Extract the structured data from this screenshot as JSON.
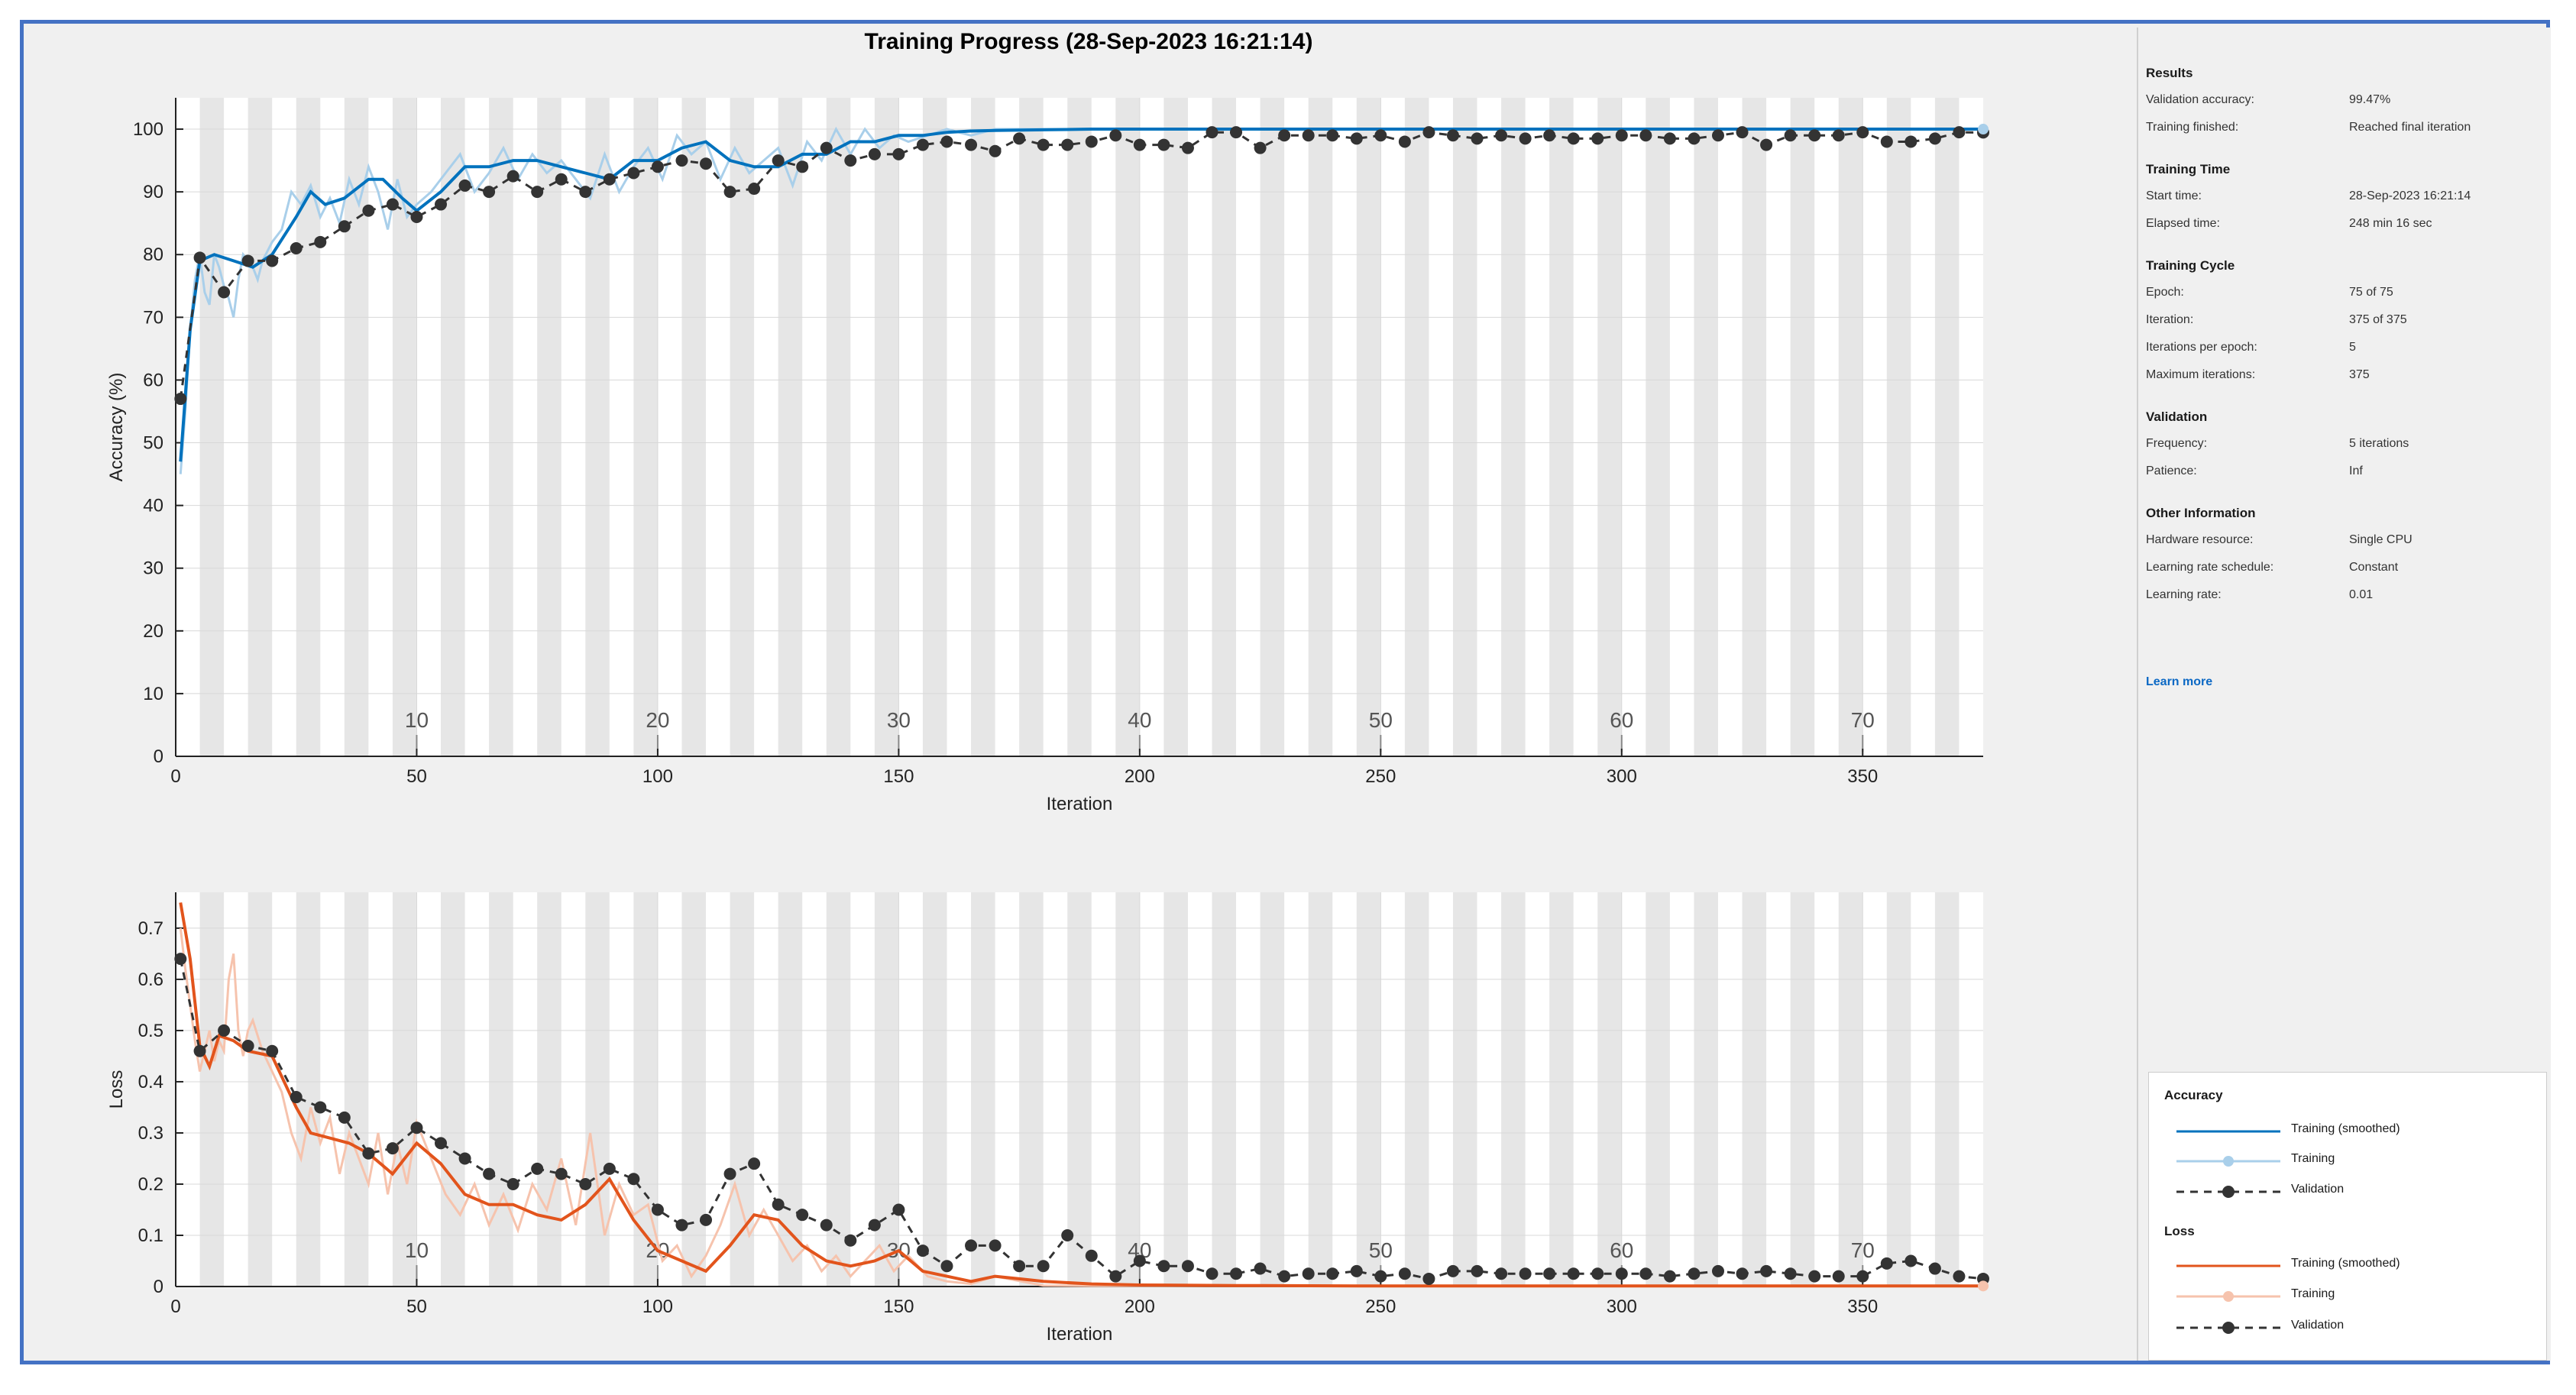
{
  "title": "Training Progress (28-Sep-2023 16:21:14)",
  "info": {
    "sections": [
      {
        "heading": "Results",
        "rows": [
          {
            "label": "Validation accuracy:",
            "value": "99.47%"
          },
          {
            "label": "Training finished:",
            "value": "Reached final iteration"
          }
        ]
      },
      {
        "heading": "Training Time",
        "rows": [
          {
            "label": "Start time:",
            "value": "28-Sep-2023 16:21:14"
          },
          {
            "label": "Elapsed time:",
            "value": "248 min 16 sec"
          }
        ]
      },
      {
        "heading": "Training Cycle",
        "rows": [
          {
            "label": "Epoch:",
            "value": "75 of 75"
          },
          {
            "label": "Iteration:",
            "value": "375 of 375"
          },
          {
            "label": "Iterations per epoch:",
            "value": "5"
          },
          {
            "label": "Maximum iterations:",
            "value": "375"
          }
        ]
      },
      {
        "heading": "Validation",
        "rows": [
          {
            "label": "Frequency:",
            "value": "5 iterations"
          },
          {
            "label": "Patience:",
            "value": "Inf"
          }
        ]
      },
      {
        "heading": "Other Information",
        "rows": [
          {
            "label": "Hardware resource:",
            "value": "Single CPU"
          },
          {
            "label": "Learning rate schedule:",
            "value": "Constant"
          },
          {
            "label": "Learning rate:",
            "value": "0.01"
          }
        ]
      }
    ],
    "learn_more": "Learn more"
  },
  "legend": {
    "accuracy_heading": "Accuracy",
    "loss_heading": "Loss",
    "items": [
      "Training (smoothed)",
      "Training",
      "Validation"
    ]
  },
  "colors": {
    "acc_smoothed": "#0072bd",
    "acc_raw": "#a9cfea",
    "loss_smoothed": "#e2541c",
    "loss_raw": "#f6c3ad",
    "validation": "#333333",
    "epoch_band": "#e6e6e6"
  },
  "chart_data": [
    {
      "type": "line",
      "xlabel": "Iteration",
      "ylabel": "Accuracy (%)",
      "xlim": [
        0,
        375
      ],
      "ylim": [
        0,
        105
      ],
      "xticks": [
        0,
        50,
        100,
        150,
        200,
        250,
        300,
        350
      ],
      "yticks": [
        0,
        10,
        20,
        30,
        40,
        50,
        60,
        70,
        80,
        90,
        100
      ],
      "epoch_ticks": [
        10,
        20,
        30,
        40,
        50,
        60,
        70
      ],
      "iterations_per_epoch": 5,
      "grid": true,
      "series": [
        {
          "name": "Training (smoothed)",
          "x": [
            1,
            3,
            5,
            8,
            12,
            16,
            20,
            25,
            28,
            31,
            35,
            40,
            43,
            47,
            50,
            55,
            60,
            65,
            70,
            75,
            80,
            85,
            90,
            95,
            100,
            105,
            110,
            115,
            120,
            125,
            130,
            135,
            140,
            145,
            150,
            155,
            160,
            165,
            170,
            180,
            190,
            200,
            220,
            250,
            300,
            350,
            375
          ],
          "y": [
            47,
            68,
            79,
            80,
            79,
            78,
            80,
            86,
            90,
            88,
            89,
            92,
            92,
            89,
            87,
            90,
            94,
            94,
            95,
            95,
            94,
            93,
            92,
            95,
            95,
            97,
            98,
            95,
            94,
            94,
            96,
            96,
            98,
            98,
            99,
            99,
            99.5,
            99.7,
            99.8,
            99.9,
            100,
            100,
            100,
            100,
            100,
            100,
            100
          ]
        },
        {
          "name": "Training",
          "x": [
            1,
            2,
            3,
            4,
            5,
            6,
            7,
            8,
            9,
            10,
            11,
            12,
            13,
            14,
            15,
            16,
            17,
            18,
            20,
            22,
            24,
            26,
            28,
            30,
            32,
            34,
            36,
            38,
            40,
            42,
            44,
            46,
            48,
            50,
            53,
            56,
            59,
            62,
            65,
            68,
            71,
            74,
            77,
            80,
            83,
            86,
            89,
            92,
            95,
            98,
            101,
            104,
            107,
            110,
            113,
            116,
            119,
            122,
            125,
            128,
            131,
            134,
            137,
            140,
            143,
            146,
            149,
            152,
            156,
            160,
            165,
            170,
            175,
            180,
            190,
            200,
            250,
            300,
            375
          ],
          "y": [
            45,
            55,
            68,
            76,
            80,
            74,
            72,
            80,
            78,
            75,
            73,
            70,
            76,
            80,
            79,
            78,
            76,
            79,
            82,
            84,
            90,
            88,
            91,
            86,
            89,
            85,
            92,
            88,
            94,
            90,
            84,
            92,
            86,
            88,
            90,
            93,
            96,
            90,
            93,
            97,
            92,
            96,
            93,
            95,
            92,
            89,
            96,
            90,
            94,
            97,
            92,
            99,
            96,
            98,
            92,
            97,
            93,
            95,
            97,
            91,
            98,
            95,
            100,
            96,
            100,
            97,
            99,
            98,
            99,
            100,
            99,
            100,
            100,
            100,
            100,
            100,
            100,
            100,
            100
          ]
        },
        {
          "name": "Validation",
          "x": [
            1,
            5,
            10,
            15,
            20,
            25,
            30,
            35,
            40,
            45,
            50,
            55,
            60,
            65,
            70,
            75,
            80,
            85,
            90,
            95,
            100,
            105,
            110,
            115,
            120,
            125,
            130,
            135,
            140,
            145,
            150,
            155,
            160,
            165,
            170,
            175,
            180,
            185,
            190,
            195,
            200,
            205,
            210,
            215,
            220,
            225,
            230,
            235,
            240,
            245,
            250,
            255,
            260,
            265,
            270,
            275,
            280,
            285,
            290,
            295,
            300,
            305,
            310,
            315,
            320,
            325,
            330,
            335,
            340,
            345,
            350,
            355,
            360,
            365,
            370,
            375
          ],
          "y": [
            57,
            79.5,
            74,
            79,
            79,
            81,
            82,
            84.5,
            87,
            88,
            86,
            88,
            91,
            90,
            92.5,
            90,
            92,
            90,
            92,
            93,
            94,
            95,
            94.5,
            90,
            90.5,
            95,
            94,
            97,
            95,
            96,
            96,
            97.5,
            98,
            97.5,
            96.5,
            98.5,
            97.5,
            97.5,
            98,
            99,
            97.5,
            97.5,
            97,
            99.5,
            99.5,
            97,
            99,
            99,
            99,
            98.5,
            99,
            98,
            99.5,
            99,
            98.5,
            99,
            98.5,
            99,
            98.5,
            98.5,
            99,
            99,
            98.5,
            98.5,
            99,
            99.5,
            97.5,
            99,
            99,
            99,
            99.5,
            98,
            98,
            98.5,
            99.5,
            99.47
          ]
        }
      ]
    },
    {
      "type": "line",
      "xlabel": "Iteration",
      "ylabel": "Loss",
      "xlim": [
        0,
        375
      ],
      "ylim": [
        0,
        0.77
      ],
      "xticks": [
        0,
        50,
        100,
        150,
        200,
        250,
        300,
        350
      ],
      "yticks": [
        0,
        0.1,
        0.2,
        0.3,
        0.4,
        0.5,
        0.6,
        0.7
      ],
      "epoch_ticks": [
        10,
        20,
        30,
        40,
        50,
        60,
        70
      ],
      "iterations_per_epoch": 5,
      "grid": true,
      "series": [
        {
          "name": "Training (smoothed)",
          "x": [
            1,
            3,
            5,
            7,
            9,
            12,
            15,
            20,
            25,
            28,
            32,
            36,
            40,
            45,
            50,
            55,
            60,
            65,
            70,
            75,
            80,
            85,
            90,
            95,
            100,
            105,
            110,
            115,
            120,
            125,
            130,
            135,
            140,
            145,
            150,
            155,
            160,
            165,
            170,
            175,
            180,
            190,
            200,
            220,
            250,
            300,
            375
          ],
          "y": [
            0.75,
            0.64,
            0.47,
            0.43,
            0.49,
            0.48,
            0.46,
            0.45,
            0.35,
            0.3,
            0.29,
            0.28,
            0.26,
            0.22,
            0.28,
            0.24,
            0.18,
            0.16,
            0.16,
            0.14,
            0.13,
            0.16,
            0.21,
            0.13,
            0.07,
            0.05,
            0.03,
            0.08,
            0.14,
            0.13,
            0.08,
            0.05,
            0.04,
            0.05,
            0.07,
            0.03,
            0.02,
            0.01,
            0.02,
            0.015,
            0.01,
            0.005,
            0.003,
            0.002,
            0.001,
            0.001,
            0.001
          ]
        },
        {
          "name": "Training",
          "x": [
            1,
            2,
            3,
            4,
            5,
            6,
            7,
            8,
            9,
            10,
            11,
            12,
            13,
            14,
            15,
            16,
            18,
            20,
            22,
            24,
            26,
            28,
            30,
            32,
            34,
            36,
            38,
            40,
            42,
            44,
            46,
            48,
            50,
            53,
            56,
            59,
            62,
            65,
            68,
            71,
            74,
            77,
            80,
            83,
            86,
            89,
            92,
            95,
            98,
            101,
            104,
            107,
            110,
            113,
            116,
            119,
            122,
            125,
            128,
            131,
            134,
            137,
            140,
            143,
            146,
            149,
            152,
            156,
            160,
            165,
            170,
            180,
            190,
            200,
            250,
            300,
            375
          ],
          "y": [
            0.7,
            0.62,
            0.55,
            0.48,
            0.42,
            0.46,
            0.5,
            0.44,
            0.48,
            0.46,
            0.6,
            0.65,
            0.5,
            0.45,
            0.5,
            0.52,
            0.46,
            0.42,
            0.38,
            0.3,
            0.25,
            0.35,
            0.28,
            0.33,
            0.22,
            0.3,
            0.25,
            0.2,
            0.3,
            0.18,
            0.28,
            0.2,
            0.32,
            0.25,
            0.18,
            0.14,
            0.2,
            0.12,
            0.18,
            0.11,
            0.2,
            0.15,
            0.25,
            0.12,
            0.3,
            0.1,
            0.2,
            0.14,
            0.16,
            0.05,
            0.08,
            0.02,
            0.06,
            0.12,
            0.2,
            0.1,
            0.15,
            0.1,
            0.05,
            0.08,
            0.03,
            0.06,
            0.02,
            0.05,
            0.08,
            0.03,
            0.06,
            0.02,
            0.01,
            0.005,
            0.02,
            0.002,
            0.001,
            0.001,
            0.001,
            0.001,
            0.001
          ]
        },
        {
          "name": "Validation",
          "x": [
            1,
            5,
            10,
            15,
            20,
            25,
            30,
            35,
            40,
            45,
            50,
            55,
            60,
            65,
            70,
            75,
            80,
            85,
            90,
            95,
            100,
            105,
            110,
            115,
            120,
            125,
            130,
            135,
            140,
            145,
            150,
            155,
            160,
            165,
            170,
            175,
            180,
            185,
            190,
            195,
            200,
            205,
            210,
            215,
            220,
            225,
            230,
            235,
            240,
            245,
            250,
            255,
            260,
            265,
            270,
            275,
            280,
            285,
            290,
            295,
            300,
            305,
            310,
            315,
            320,
            325,
            330,
            335,
            340,
            345,
            350,
            355,
            360,
            365,
            370,
            375
          ],
          "y": [
            0.64,
            0.46,
            0.5,
            0.47,
            0.46,
            0.37,
            0.35,
            0.33,
            0.26,
            0.27,
            0.31,
            0.28,
            0.25,
            0.22,
            0.2,
            0.23,
            0.22,
            0.2,
            0.23,
            0.21,
            0.15,
            0.12,
            0.13,
            0.22,
            0.24,
            0.16,
            0.14,
            0.12,
            0.09,
            0.12,
            0.15,
            0.07,
            0.04,
            0.08,
            0.08,
            0.04,
            0.04,
            0.1,
            0.06,
            0.02,
            0.05,
            0.04,
            0.04,
            0.025,
            0.025,
            0.035,
            0.02,
            0.025,
            0.025,
            0.03,
            0.02,
            0.025,
            0.015,
            0.03,
            0.03,
            0.025,
            0.025,
            0.025,
            0.025,
            0.025,
            0.025,
            0.025,
            0.02,
            0.025,
            0.03,
            0.025,
            0.03,
            0.025,
            0.02,
            0.02,
            0.02,
            0.045,
            0.05,
            0.035,
            0.02,
            0.015
          ]
        }
      ]
    }
  ]
}
